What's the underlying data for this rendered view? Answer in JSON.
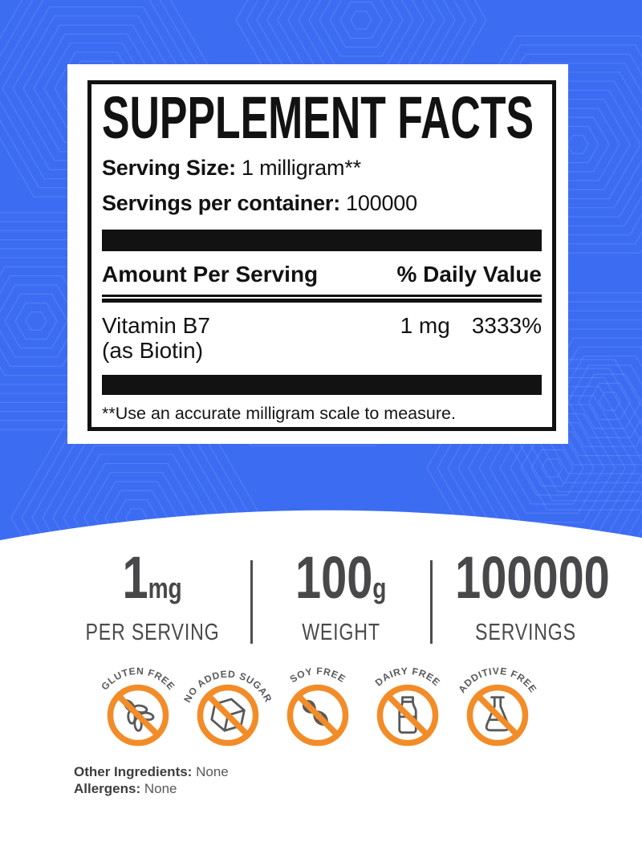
{
  "label_panel": {
    "title": "SUPPLEMENT FACTS",
    "serving_size_label": "Serving Size:",
    "serving_size_value": "1 milligram**",
    "servings_label": "Servings per container:",
    "servings_value": "100000",
    "header": {
      "amount": "Amount Per Serving",
      "daily_value": "% Daily Value"
    },
    "rows": [
      {
        "name": "Vitamin B7",
        "form": "(as Biotin)",
        "amount": "1 mg",
        "daily_value": "3333%"
      }
    ],
    "footnote": "**Use an accurate milligram scale to measure."
  },
  "stats": [
    {
      "value": "1",
      "unit": "mg",
      "label": "PER SERVING"
    },
    {
      "value": "100",
      "unit": "g",
      "label": "WEIGHT"
    },
    {
      "value": "100000",
      "unit": "",
      "label": "SERVINGS"
    }
  ],
  "badges": [
    {
      "label": "GLUTEN FREE",
      "icon": "wheat-icon"
    },
    {
      "label": "NO ADDED SUGAR",
      "icon": "sugar-cube-icon"
    },
    {
      "label": "SOY FREE",
      "icon": "soybean-icon"
    },
    {
      "label": "DAIRY FREE",
      "icon": "milk-bottle-icon"
    },
    {
      "label": "ADDITIVE FREE",
      "icon": "flask-icon"
    }
  ],
  "footer": {
    "other_ingredients_label": "Other Ingredients:",
    "other_ingredients_value": "None",
    "allergens_label": "Allergens:",
    "allergens_value": "None"
  },
  "colors": {
    "background_blue": "#3c6cf2",
    "accent_orange": "#f28c28",
    "stat_gray": "#48484a",
    "icon_gray": "#58595b",
    "ink_black": "#121212"
  }
}
